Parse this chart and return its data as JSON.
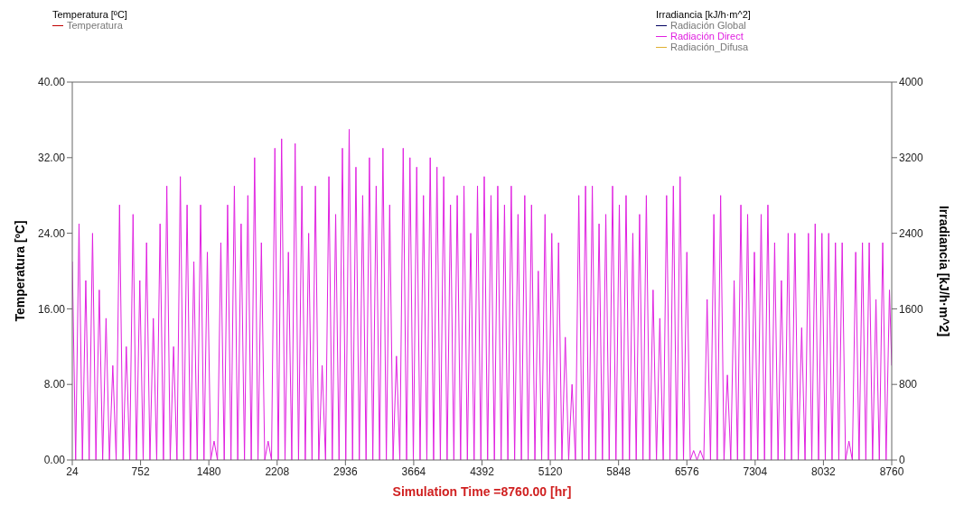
{
  "chart_data": {
    "type": "line",
    "xlabel": "Simulation Time =8760.00 [hr]",
    "ylabel": "Temperatura [ºC]",
    "y2label": "Irradiancia [kJ/h·m^2]",
    "annotations": [
      "Temperatura [ºC]",
      "Irradiancia [kJ/h·m^2]"
    ],
    "xlim": [
      24,
      8760
    ],
    "xticks": [
      24,
      752,
      1480,
      2208,
      2936,
      3664,
      4392,
      5120,
      5848,
      6576,
      7304,
      8032,
      8760
    ],
    "ylim": [
      0,
      40
    ],
    "yticks": [
      {
        "value": 0,
        "label": "0.00"
      },
      {
        "value": 8,
        "label": "8.00"
      },
      {
        "value": 16,
        "label": "16.00"
      },
      {
        "value": 24,
        "label": "24.00"
      },
      {
        "value": 32,
        "label": "32.00"
      },
      {
        "value": 40,
        "label": "40.00"
      }
    ],
    "y2lim": [
      0,
      4000
    ],
    "y2ticks": [
      0,
      800,
      1600,
      2400,
      3200,
      4000
    ],
    "legend": "top",
    "series": [
      {
        "name": "Temperatura",
        "color": "#c00000",
        "axis": "y"
      },
      {
        "name": "Radiación  Global",
        "color": "#000060",
        "axis": "y2"
      },
      {
        "name": "Radiación  Direct",
        "color": "#e020e0",
        "axis": "y2",
        "x": [
          24,
          60,
          96,
          132,
          168,
          204,
          240,
          276,
          312,
          348,
          384,
          420,
          456,
          492,
          528,
          564,
          600,
          636,
          672,
          708,
          744,
          780,
          816,
          852,
          888,
          924,
          960,
          996,
          1032,
          1068,
          1104,
          1140,
          1176,
          1212,
          1248,
          1284,
          1320,
          1356,
          1392,
          1428,
          1464,
          1500,
          1536,
          1572,
          1608,
          1644,
          1680,
          1716,
          1752,
          1788,
          1824,
          1860,
          1896,
          1932,
          1968,
          2004,
          2040,
          2076,
          2112,
          2148,
          2184,
          2220,
          2256,
          2292,
          2328,
          2364,
          2400,
          2436,
          2472,
          2508,
          2544,
          2580,
          2616,
          2652,
          2688,
          2724,
          2760,
          2796,
          2832,
          2868,
          2904,
          2940,
          2976,
          3012,
          3048,
          3084,
          3120,
          3156,
          3192,
          3228,
          3264,
          3300,
          3336,
          3372,
          3408,
          3444,
          3480,
          3516,
          3552,
          3588,
          3624,
          3660,
          3696,
          3732,
          3768,
          3804,
          3840,
          3876,
          3912,
          3948,
          3984,
          4020,
          4056,
          4092,
          4128,
          4164,
          4200,
          4236,
          4272,
          4308,
          4344,
          4380,
          4416,
          4452,
          4488,
          4524,
          4560,
          4596,
          4632,
          4668,
          4704,
          4740,
          4776,
          4812,
          4848,
          4884,
          4920,
          4956,
          4992,
          5028,
          5064,
          5100,
          5136,
          5172,
          5208,
          5244,
          5280,
          5316,
          5352,
          5388,
          5424,
          5460,
          5496,
          5532,
          5568,
          5604,
          5640,
          5676,
          5712,
          5748,
          5784,
          5820,
          5856,
          5892,
          5928,
          5964,
          6000,
          6036,
          6072,
          6108,
          6144,
          6180,
          6216,
          6252,
          6288,
          6324,
          6360,
          6396,
          6432,
          6468,
          6504,
          6540,
          6576,
          6612,
          6648,
          6684,
          6720,
          6756,
          6792,
          6828,
          6864,
          6900,
          6936,
          6972,
          7008,
          7044,
          7080,
          7116,
          7152,
          7188,
          7224,
          7260,
          7296,
          7332,
          7368,
          7404,
          7440,
          7476,
          7512,
          7548,
          7584,
          7620,
          7656,
          7692,
          7728,
          7764,
          7800,
          7836,
          7872,
          7908,
          7944,
          7980,
          8016,
          8052,
          8088,
          8124,
          8160,
          8196,
          8232,
          8268,
          8304,
          8340,
          8376,
          8412,
          8448,
          8484,
          8520,
          8556,
          8592,
          8628,
          8664,
          8700,
          8736,
          8760
        ],
        "values": [
          2100,
          0,
          2500,
          0,
          1900,
          0,
          2400,
          0,
          1800,
          0,
          1500,
          0,
          1000,
          0,
          2700,
          0,
          1200,
          0,
          2600,
          0,
          1900,
          0,
          2300,
          0,
          1500,
          0,
          2500,
          0,
          2900,
          0,
          1200,
          0,
          3000,
          0,
          2700,
          0,
          2100,
          0,
          2700,
          0,
          2200,
          0,
          200,
          0,
          2300,
          0,
          2700,
          0,
          2900,
          0,
          2500,
          0,
          2800,
          0,
          3200,
          0,
          2300,
          0,
          200,
          0,
          3300,
          0,
          3400,
          0,
          2200,
          0,
          3350,
          0,
          2900,
          0,
          2400,
          0,
          2900,
          0,
          1000,
          0,
          3000,
          0,
          2600,
          0,
          3300,
          0,
          3500,
          0,
          3100,
          0,
          2800,
          0,
          3200,
          0,
          2900,
          0,
          3300,
          0,
          2700,
          0,
          1100,
          0,
          3300,
          0,
          3200,
          0,
          3100,
          0,
          2800,
          0,
          3200,
          0,
          3100,
          0,
          3000,
          0,
          2700,
          0,
          2800,
          0,
          2900,
          0,
          2400,
          0,
          2900,
          0,
          3000,
          0,
          2800,
          0,
          2900,
          0,
          2700,
          0,
          2900,
          0,
          2600,
          0,
          2800,
          0,
          2700,
          0,
          2000,
          0,
          2600,
          0,
          2400,
          0,
          2300,
          0,
          1300,
          0,
          800,
          0,
          2800,
          0,
          2900,
          0,
          2900,
          0,
          2500,
          0,
          2600,
          0,
          2900,
          0,
          2700,
          0,
          2800,
          0,
          2400,
          0,
          2600,
          0,
          2800,
          0,
          1800,
          0,
          1500,
          0,
          2800,
          0,
          2900,
          0,
          3000,
          0,
          2200,
          0,
          100,
          0,
          100,
          0,
          1700,
          0,
          2600,
          0,
          2800,
          0,
          900,
          0,
          1900,
          0,
          2700,
          0,
          2600,
          0,
          2200,
          0,
          2600,
          0,
          2700,
          0,
          2300,
          0,
          1900,
          0,
          2400,
          0,
          2400,
          0,
          1400,
          0,
          2400,
          0,
          2500,
          0,
          2400,
          0,
          2400,
          0,
          2300,
          0,
          2300,
          0,
          200,
          0,
          2200,
          0,
          2300,
          0,
          2300,
          0,
          1700,
          0,
          2300,
          0,
          1800,
          1000
        ]
      },
      {
        "name": "Radiación_Difusa",
        "color": "#e0b030",
        "axis": "y2"
      }
    ]
  }
}
